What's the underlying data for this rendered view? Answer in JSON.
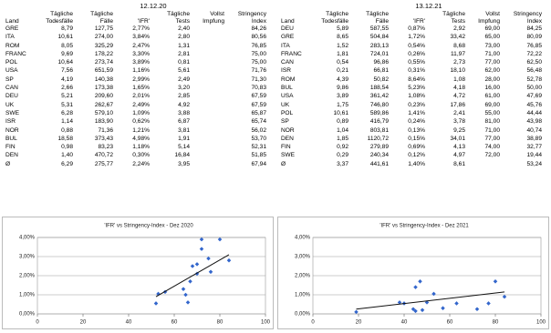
{
  "tables": [
    {
      "date": "12.12.20",
      "columns": [
        "Land",
        "Tägliche Todesfälle",
        "Tägliche Fälle",
        "'IFR'",
        "Tägliche Tests",
        "Vollst Impfung",
        "Stringency Index"
      ],
      "rows": [
        [
          "GRE",
          "8,79",
          "127,75",
          "2,77%",
          "2,40",
          null,
          "84,26"
        ],
        [
          "ITA",
          "10,61",
          "274,00",
          "3,84%",
          "2,80",
          null,
          "80,56"
        ],
        [
          "ROM",
          "8,05",
          "325,29",
          "2,47%",
          "1,31",
          null,
          "76,85"
        ],
        [
          "FRANC",
          "9,69",
          "178,22",
          "3,30%",
          "2,81",
          null,
          "75,00"
        ],
        [
          "POL",
          "10,64",
          "273,74",
          "3,89%",
          "0,81",
          null,
          "75,00"
        ],
        [
          "USA",
          "7,56",
          "651,59",
          "1,16%",
          "5,61",
          null,
          "71,76"
        ],
        [
          "SP",
          "4,19",
          "140,38",
          "2,99%",
          "2,49",
          null,
          "71,30"
        ],
        [
          "CAN",
          "2,66",
          "173,38",
          "1,65%",
          "3,20",
          null,
          "70,83"
        ],
        [
          "DEU",
          "5,21",
          "209,60",
          "2,01%",
          "2,85",
          null,
          "67,59"
        ],
        [
          "UK",
          "5,31",
          "262,67",
          "2,49%",
          "4,92",
          null,
          "67,59"
        ],
        [
          "SWE",
          "6,28",
          "579,10",
          "1,09%",
          "3,88",
          null,
          "65,87"
        ],
        [
          "ISR",
          "1,14",
          "183,90",
          "0,62%",
          "6,87",
          null,
          "65,74"
        ],
        [
          "NOR",
          "0,88",
          "71,36",
          "1,21%",
          "3,81",
          null,
          "56,02"
        ],
        [
          "BUL",
          "18,58",
          "373,43",
          "4,98%",
          "1,91",
          null,
          "53,70"
        ],
        [
          "FIN",
          "0,98",
          "83,23",
          "1,18%",
          "5,14",
          null,
          "52,31"
        ],
        [
          "DEN",
          "1,40",
          "470,72",
          "0,30%",
          "16,84",
          null,
          "51,85"
        ],
        [
          "Ø",
          "6,29",
          "275,77",
          "2,24%",
          "3,95",
          null,
          "67,94"
        ]
      ]
    },
    {
      "date": "13.12.21",
      "columns": [
        "Land",
        "Tägliche Todesfälle",
        "Tägliche Fälle",
        "'IFR'",
        "Tägliche Tests",
        "Vollst Impfung",
        "Stringency Index"
      ],
      "rows": [
        [
          "DEU",
          "5,89",
          "587,55",
          "0,87%",
          "2,92",
          "69,00",
          "84,25"
        ],
        [
          "GRE",
          "8,65",
          "504,84",
          "1,72%",
          "33,42",
          "65,00",
          "80,09"
        ],
        [
          "ITA",
          "1,52",
          "283,13",
          "0,54%",
          "8,68",
          "73,00",
          "76,85"
        ],
        [
          "FRANC",
          "1,81",
          "724,01",
          "0,26%",
          "11,97",
          "71,00",
          "72,22"
        ],
        [
          "CAN",
          "0,54",
          "96,86",
          "0,55%",
          "2,73",
          "77,00",
          "62,50"
        ],
        [
          "ISR",
          "0,21",
          "66,81",
          "0,31%",
          "18,10",
          "62,00",
          "56,48"
        ],
        [
          "ROM",
          "4,39",
          "50,82",
          "8,64%",
          "1,08",
          "28,00",
          "52,78"
        ],
        [
          "BUL",
          "9,86",
          "188,54",
          "5,23%",
          "4,18",
          "16,00",
          "50,00"
        ],
        [
          "USA",
          "3,89",
          "361,42",
          "1,08%",
          "4,72",
          "61,00",
          "47,69"
        ],
        [
          "UK",
          "1,75",
          "746,80",
          "0,23%",
          "17,86",
          "69,00",
          "45,76"
        ],
        [
          "POL",
          "10,61",
          "589,86",
          "1,41%",
          "2,41",
          "55,00",
          "44,44"
        ],
        [
          "SP",
          "0,89",
          "416,79",
          "0,24%",
          "3,78",
          "81,00",
          "43,98"
        ],
        [
          "NOR",
          "1,04",
          "803,81",
          "0,13%",
          "9,25",
          "71,00",
          "40,74"
        ],
        [
          "DEN",
          "1,85",
          "1120,72",
          "0,15%",
          "34,01",
          "77,00",
          "38,89"
        ],
        [
          "FIN",
          "0,92",
          "279,89",
          "0,69%",
          "4,13",
          "74,00",
          "32,77"
        ],
        [
          "SWE",
          "0,29",
          "240,34",
          "0,12%",
          "4,97",
          "72,00",
          "19,44"
        ],
        [
          "Ø",
          "3,37",
          "441,61",
          "1,40%",
          "8,61",
          null,
          "53,24"
        ]
      ]
    }
  ],
  "chart_data": [
    {
      "type": "scatter",
      "title": "'IFR' vs Stringency-Index - Dez 2020",
      "color": "#3366cc",
      "trend_color": "#111",
      "x": [
        52,
        53,
        56,
        64,
        65,
        66,
        67,
        68,
        70,
        70,
        72,
        72,
        75,
        76,
        80,
        84
      ],
      "y": [
        0.55,
        1.05,
        1.15,
        1.3,
        1.0,
        0.6,
        1.7,
        2.5,
        2.1,
        2.6,
        3.4,
        3.9,
        2.9,
        2.2,
        3.9,
        2.8
      ],
      "trendline": {
        "x": [
          52,
          84
        ],
        "y": [
          0.9,
          3.1
        ]
      },
      "xlim": [
        0,
        100
      ],
      "xticks": [
        0,
        20,
        40,
        60,
        80,
        100
      ],
      "ylim": [
        0,
        4
      ],
      "yticks": [
        {
          "value": 0,
          "label": "0,00%"
        },
        {
          "value": 1,
          "label": "1,00%"
        },
        {
          "value": 2,
          "label": "2,00%"
        },
        {
          "value": 3,
          "label": "3,00%"
        },
        {
          "value": 4,
          "label": "4,00%"
        }
      ],
      "grid": true
    },
    {
      "type": "scatter",
      "title": "'IFR' vs Stringency-Index - Dez 2021",
      "color": "#3366cc",
      "trend_color": "#111",
      "x": [
        19,
        38,
        40,
        44,
        45,
        45,
        47,
        48,
        50,
        53,
        57,
        63,
        72,
        77,
        80,
        84
      ],
      "y": [
        0.1,
        0.6,
        0.55,
        0.25,
        0.15,
        1.4,
        1.7,
        0.2,
        0.6,
        1.05,
        0.3,
        0.55,
        0.25,
        0.55,
        1.7,
        0.9
      ],
      "trendline": {
        "x": [
          19,
          84
        ],
        "y": [
          0.25,
          1.15
        ]
      },
      "xlim": [
        0,
        100
      ],
      "xticks": [
        0,
        20,
        40,
        60,
        80,
        100
      ],
      "ylim": [
        0,
        4
      ],
      "yticks": [
        {
          "value": 0,
          "label": "0,00%"
        },
        {
          "value": 1,
          "label": "1,00%"
        },
        {
          "value": 2,
          "label": "2,00%"
        },
        {
          "value": 3,
          "label": "3,00%"
        },
        {
          "value": 4,
          "label": "4,00%"
        }
      ],
      "grid": true
    }
  ]
}
